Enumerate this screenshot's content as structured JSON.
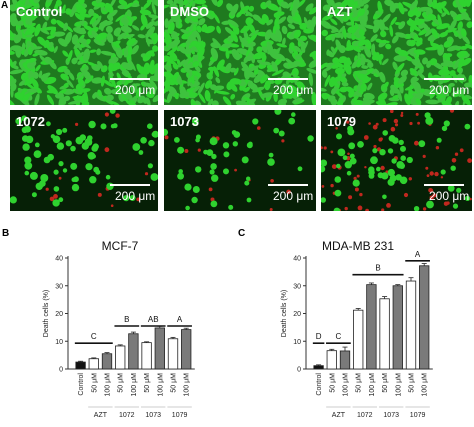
{
  "figure": {
    "panel_a_letter": "A",
    "panel_b_letter": "B",
    "panel_c_letter": "C"
  },
  "micrographs": [
    {
      "label": "Control",
      "scale": "200 μm",
      "style": "confluent"
    },
    {
      "label": "DMSO",
      "scale": "200 μm",
      "style": "confluent"
    },
    {
      "label": "AZT",
      "scale": "200 μm",
      "style": "confluent"
    },
    {
      "label": "1072",
      "scale": "200 μm",
      "style": "sparse-bright"
    },
    {
      "label": "1073",
      "scale": "200 μm",
      "style": "sparse"
    },
    {
      "label": "1079",
      "scale": "200 μm",
      "style": "mixed-red"
    }
  ],
  "colors": {
    "live_cell": "#2fd22f",
    "dead_cell": "#c0281e",
    "micro_bg": "#062006",
    "bar_control": "#111111",
    "bar_50": "#ffffff",
    "bar_100": "#7a7a7a"
  },
  "chart_data": [
    {
      "type": "bar",
      "title": "MCF-7",
      "ylabel": "Death cells (%)",
      "ylim": [
        0,
        40
      ],
      "yticks": [
        "0",
        "10",
        "20",
        "30",
        "40"
      ],
      "categories": [
        "Control",
        "50 μM",
        "100 μM",
        "50 μM",
        "100 μM",
        "50 μM",
        "100 μM",
        "50 μM",
        "100 μM"
      ],
      "values": [
        2.5,
        3.7,
        5.5,
        8.3,
        12.7,
        9.5,
        14.8,
        10.9,
        14.2
      ],
      "errors": [
        0.3,
        0.3,
        0.4,
        0.4,
        0.6,
        0.3,
        0.6,
        0.5,
        0.5
      ],
      "fills": [
        "control",
        "50",
        "100",
        "50",
        "100",
        "50",
        "100",
        "50",
        "100"
      ],
      "groups": [
        {
          "label": "AZT",
          "from": 1,
          "to": 2
        },
        {
          "label": "1072",
          "from": 3,
          "to": 4
        },
        {
          "label": "1073",
          "from": 5,
          "to": 6
        },
        {
          "label": "1079",
          "from": 7,
          "to": 8
        }
      ],
      "significance": [
        {
          "letter": "C",
          "from": 0,
          "to": 2,
          "y": 9.3
        },
        {
          "letter": "B",
          "from": 3,
          "to": 4,
          "y": 15.5
        },
        {
          "letter": "AB",
          "from": 5,
          "to": 6,
          "y": 15.5
        },
        {
          "letter": "A",
          "from": 7,
          "to": 8,
          "y": 15.5
        }
      ]
    },
    {
      "type": "bar",
      "title": "MDA-MB 231",
      "ylabel": "Death cells (%)",
      "ylim": [
        0,
        40
      ],
      "yticks": [
        "0",
        "10",
        "20",
        "30",
        "40"
      ],
      "categories": [
        "Control",
        "50 μM",
        "100 μM",
        "50 μM",
        "100 μM",
        "50 μM",
        "100 μM",
        "50 μM",
        "100 μM"
      ],
      "values": [
        1.2,
        6.6,
        6.5,
        21.2,
        30.4,
        25.3,
        30.0,
        31.7,
        37.2
      ],
      "errors": [
        0.3,
        0.5,
        1.4,
        0.6,
        0.6,
        0.8,
        0.4,
        1.2,
        0.8
      ],
      "fills": [
        "control",
        "50",
        "100",
        "50",
        "100",
        "50",
        "100",
        "50",
        "100"
      ],
      "groups": [
        {
          "label": "AZT",
          "from": 1,
          "to": 2
        },
        {
          "label": "1072",
          "from": 3,
          "to": 4
        },
        {
          "label": "1073",
          "from": 5,
          "to": 6
        },
        {
          "label": "1079",
          "from": 7,
          "to": 8
        }
      ],
      "significance": [
        {
          "letter": "D",
          "from": 0,
          "to": 0,
          "y": 9.3
        },
        {
          "letter": "C",
          "from": 1,
          "to": 2,
          "y": 9.3
        },
        {
          "letter": "B",
          "from": 3,
          "to": 6,
          "y": 34.0
        },
        {
          "letter": "A",
          "from": 7,
          "to": 8,
          "y": 39.0
        }
      ]
    }
  ]
}
